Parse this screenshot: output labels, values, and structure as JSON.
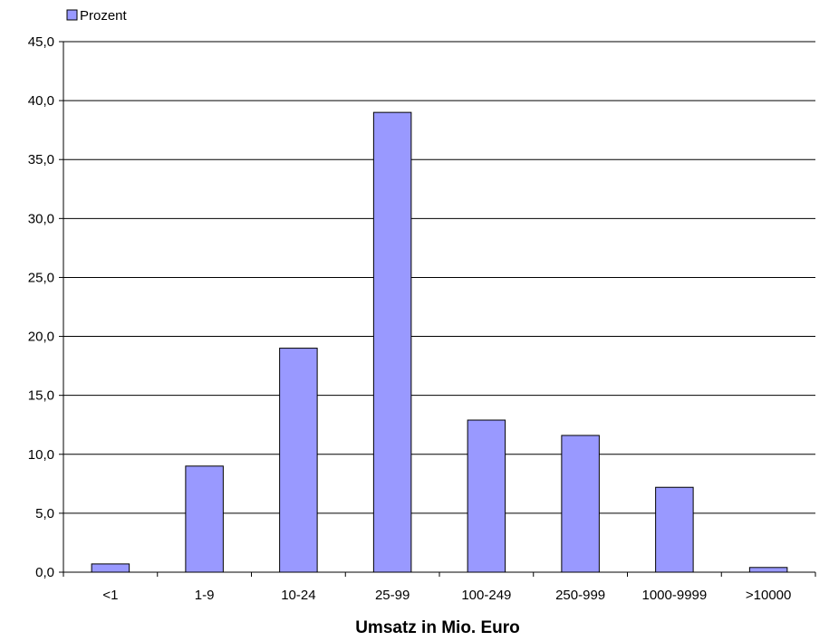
{
  "chart_data": {
    "type": "bar",
    "categories": [
      "<1",
      "1-9",
      "10-24",
      "25-99",
      "100-249",
      "250-999",
      "1000-9999",
      ">10000"
    ],
    "series": [
      {
        "name": "Prozent",
        "values": [
          0.7,
          9.0,
          19.0,
          39.0,
          12.9,
          11.6,
          7.2,
          0.4
        ],
        "color": "#9999ff"
      }
    ],
    "xlabel": "Umsatz in Mio. Euro",
    "ylabel": "",
    "ylim": [
      0,
      45
    ],
    "yticks": [
      "0,0",
      "5,0",
      "10,0",
      "15,0",
      "20,0",
      "25,0",
      "30,0",
      "35,0",
      "40,0",
      "45,0"
    ],
    "grid": true,
    "legend_position": "top-left"
  }
}
